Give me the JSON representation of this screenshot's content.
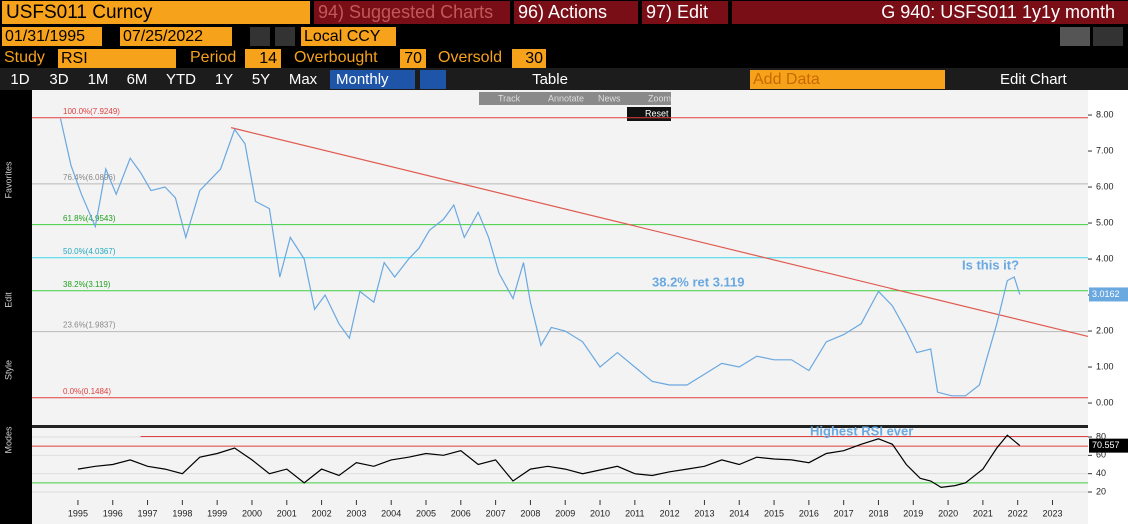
{
  "toolbar": {
    "ticker": "USFS011 Curncy",
    "suggested": "94) Suggested Charts",
    "actions": "96) Actions",
    "edit": "97) Edit",
    "title": "G 940: USFS011 1y1y month",
    "start_date": "01/31/1995",
    "end_date": "07/25/2022",
    "currency": "Local CCY",
    "study_label": "Study",
    "study": "RSI",
    "period_label": "Period",
    "period": 14,
    "overbought_label": "Overbought",
    "overbought": 70,
    "oversold_label": "Oversold",
    "oversold": 30,
    "ranges": [
      "1D",
      "3D",
      "1M",
      "6M",
      "YTD",
      "1Y",
      "5Y",
      "Max"
    ],
    "frequency": "Monthly",
    "table": "Table",
    "add_data": "Add Data",
    "edit_chart": "Edit Chart",
    "chart_tools": [
      "Track",
      "Annotate",
      "News",
      "Zoom"
    ],
    "reset": "Reset",
    "side_labels": [
      "Favorites",
      "Edit",
      "Style",
      "Modes"
    ]
  },
  "chart_data": [
    {
      "type": "line",
      "name": "USFS011 1y1y",
      "annotations": [
        "38.2% ret 3.119",
        "Is this it?"
      ],
      "xlim": [
        1994.18,
        2024.52
      ],
      "ylim": [
        -0.61,
        8.64
      ],
      "yticks": [
        {
          "value": 0,
          "label": "0.00"
        },
        {
          "value": 1,
          "label": "1.00"
        },
        {
          "value": 2,
          "label": "2.00"
        },
        {
          "value": 3,
          "label": "3.00"
        },
        {
          "value": 4,
          "label": "4.00"
        },
        {
          "value": 5,
          "label": "5.00"
        },
        {
          "value": 6,
          "label": "6.00"
        },
        {
          "value": 7,
          "label": "7.00"
        },
        {
          "value": 8,
          "label": "8.00"
        }
      ],
      "levels": [
        {
          "label": "100.0%(7.9249)",
          "value": 7.9249,
          "color": "#e04040"
        },
        {
          "label": "76.4%(6.0896)",
          "value": 6.0896,
          "color": "#b8b8b8"
        },
        {
          "label": "61.8%(4.9543)",
          "value": 4.9543,
          "color": "#40d040"
        },
        {
          "label": "50.0%(4.0367)",
          "value": 4.0367,
          "color": "#40d8f0"
        },
        {
          "label": "38.2%(3.119)",
          "value": 3.119,
          "color": "#40d040"
        },
        {
          "label": "23.6%(1.9837)",
          "value": 1.9837,
          "color": "#b8b8b8"
        },
        {
          "label": "0.0%(0.1484)",
          "value": 0.1484,
          "color": "#e04040"
        }
      ],
      "trendline": {
        "x": [
          1999.9,
          2024.52
        ],
        "y": [
          7.65,
          1.85
        ],
        "color": "#e05a50"
      },
      "series": [
        {
          "color": "#6aa8e0",
          "x": [
            1995.0,
            1995.3,
            1995.6,
            1996.0,
            1996.3,
            1996.6,
            1997.0,
            1997.3,
            1997.6,
            1998.0,
            1998.3,
            1998.6,
            1999.0,
            1999.3,
            1999.6,
            2000.0,
            2000.3,
            2000.6,
            2001.0,
            2001.3,
            2001.6,
            2002.0,
            2002.3,
            2002.6,
            2003.0,
            2003.3,
            2003.6,
            2004.0,
            2004.3,
            2004.6,
            2005.0,
            2005.3,
            2005.6,
            2006.0,
            2006.3,
            2006.6,
            2007.0,
            2007.3,
            2007.6,
            2008.0,
            2008.3,
            2008.5,
            2008.8,
            2009.1,
            2009.5,
            2010.0,
            2010.5,
            2011.0,
            2011.5,
            2012.0,
            2012.5,
            2013.0,
            2013.5,
            2014.0,
            2014.5,
            2015.0,
            2015.5,
            2016.0,
            2016.5,
            2017.0,
            2017.5,
            2018.0,
            2018.5,
            2018.9,
            2019.3,
            2019.6,
            2020.0,
            2020.2,
            2020.6,
            2021.0,
            2021.4,
            2021.6,
            2021.9,
            2022.2,
            2022.4,
            2022.56
          ],
          "values": [
            7.9,
            6.6,
            5.8,
            4.9,
            6.5,
            5.8,
            6.8,
            6.4,
            5.9,
            6.0,
            5.7,
            4.6,
            5.9,
            6.2,
            6.5,
            7.6,
            7.2,
            5.6,
            5.4,
            3.5,
            4.6,
            4.0,
            2.6,
            3.0,
            2.2,
            1.8,
            3.1,
            2.8,
            3.9,
            3.5,
            4.0,
            4.3,
            4.8,
            5.1,
            5.5,
            4.6,
            5.3,
            4.6,
            3.6,
            2.9,
            3.9,
            2.8,
            1.6,
            2.1,
            2.0,
            1.7,
            1.0,
            1.4,
            1.0,
            0.6,
            0.5,
            0.5,
            0.8,
            1.1,
            1.0,
            1.3,
            1.2,
            1.2,
            0.9,
            1.7,
            1.9,
            2.2,
            3.1,
            2.7,
            2.0,
            1.4,
            1.5,
            0.3,
            0.2,
            0.2,
            0.5,
            1.2,
            2.2,
            3.4,
            3.5,
            3.0162
          ]
        }
      ]
    },
    {
      "type": "line",
      "name": "RSI",
      "annotations": [
        "Highest RSI ever"
      ],
      "xlim": [
        1994.18,
        2024.52
      ],
      "ylim": [
        11.3,
        89.8
      ],
      "yticks": [
        20,
        40,
        60,
        80
      ],
      "xticks": [
        {
          "value": 1995.5,
          "label": "1995"
        },
        {
          "value": 1996.5,
          "label": "1996"
        },
        {
          "value": 1997.5,
          "label": "1997"
        },
        {
          "value": 1998.5,
          "label": "1998"
        },
        {
          "value": 1999.5,
          "label": "1999"
        },
        {
          "value": 2000.5,
          "label": "2000"
        },
        {
          "value": 2001.5,
          "label": "2001"
        },
        {
          "value": 2002.5,
          "label": "2002"
        },
        {
          "value": 2003.5,
          "label": "2003"
        },
        {
          "value": 2004.5,
          "label": "2004"
        },
        {
          "value": 2005.5,
          "label": "2005"
        },
        {
          "value": 2006.5,
          "label": "2006"
        },
        {
          "value": 2007.5,
          "label": "2007"
        },
        {
          "value": 2008.5,
          "label": "2008"
        },
        {
          "value": 2009.5,
          "label": "2009"
        },
        {
          "value": 2010.5,
          "label": "2010"
        },
        {
          "value": 2011.5,
          "label": "2011"
        },
        {
          "value": 2012.5,
          "label": "2012"
        },
        {
          "value": 2013.5,
          "label": "2013"
        },
        {
          "value": 2014.5,
          "label": "2014"
        },
        {
          "value": 2015.5,
          "label": "2015"
        },
        {
          "value": 2016.5,
          "label": "2016"
        },
        {
          "value": 2017.5,
          "label": "2017"
        },
        {
          "value": 2018.5,
          "label": "2018"
        },
        {
          "value": 2019.5,
          "label": "2019"
        },
        {
          "value": 2020.5,
          "label": "2020"
        },
        {
          "value": 2021.5,
          "label": "2021"
        },
        {
          "value": 2022.5,
          "label": "2022"
        },
        {
          "value": 2023.5,
          "label": "2023"
        }
      ],
      "levels": [
        {
          "value": 80.5,
          "color": "#e04040",
          "from": 1997.3
        },
        {
          "value": 70,
          "color": "#e04040",
          "from": 1994.18
        },
        {
          "value": 30,
          "color": "#40d040",
          "from": 1994.18
        }
      ],
      "series": [
        {
          "color": "#000000",
          "x": [
            1995.5,
            1996.0,
            1996.5,
            1997.0,
            1997.5,
            1998.0,
            1998.5,
            1999.0,
            1999.5,
            2000.0,
            2000.5,
            2001.0,
            2001.5,
            2002.0,
            2002.5,
            2003.0,
            2003.5,
            2004.0,
            2004.5,
            2005.0,
            2005.5,
            2006.0,
            2006.5,
            2007.0,
            2007.5,
            2008.0,
            2008.5,
            2009.0,
            2009.5,
            2010.0,
            2010.5,
            2011.0,
            2011.5,
            2012.0,
            2012.5,
            2013.0,
            2013.5,
            2014.0,
            2014.5,
            2015.0,
            2015.5,
            2016.0,
            2016.5,
            2017.0,
            2017.5,
            2018.0,
            2018.5,
            2018.9,
            2019.3,
            2019.7,
            2020.0,
            2020.3,
            2020.7,
            2021.0,
            2021.5,
            2021.9,
            2022.2,
            2022.56
          ],
          "values": [
            45,
            48,
            50,
            55,
            48,
            45,
            40,
            58,
            62,
            68,
            55,
            40,
            45,
            30,
            45,
            38,
            52,
            48,
            55,
            58,
            62,
            60,
            65,
            50,
            55,
            32,
            45,
            48,
            45,
            40,
            44,
            48,
            40,
            38,
            42,
            45,
            48,
            55,
            50,
            58,
            56,
            55,
            52,
            62,
            65,
            72,
            78,
            72,
            50,
            35,
            32,
            25,
            27,
            30,
            45,
            68,
            82,
            70.557
          ]
        }
      ]
    }
  ]
}
